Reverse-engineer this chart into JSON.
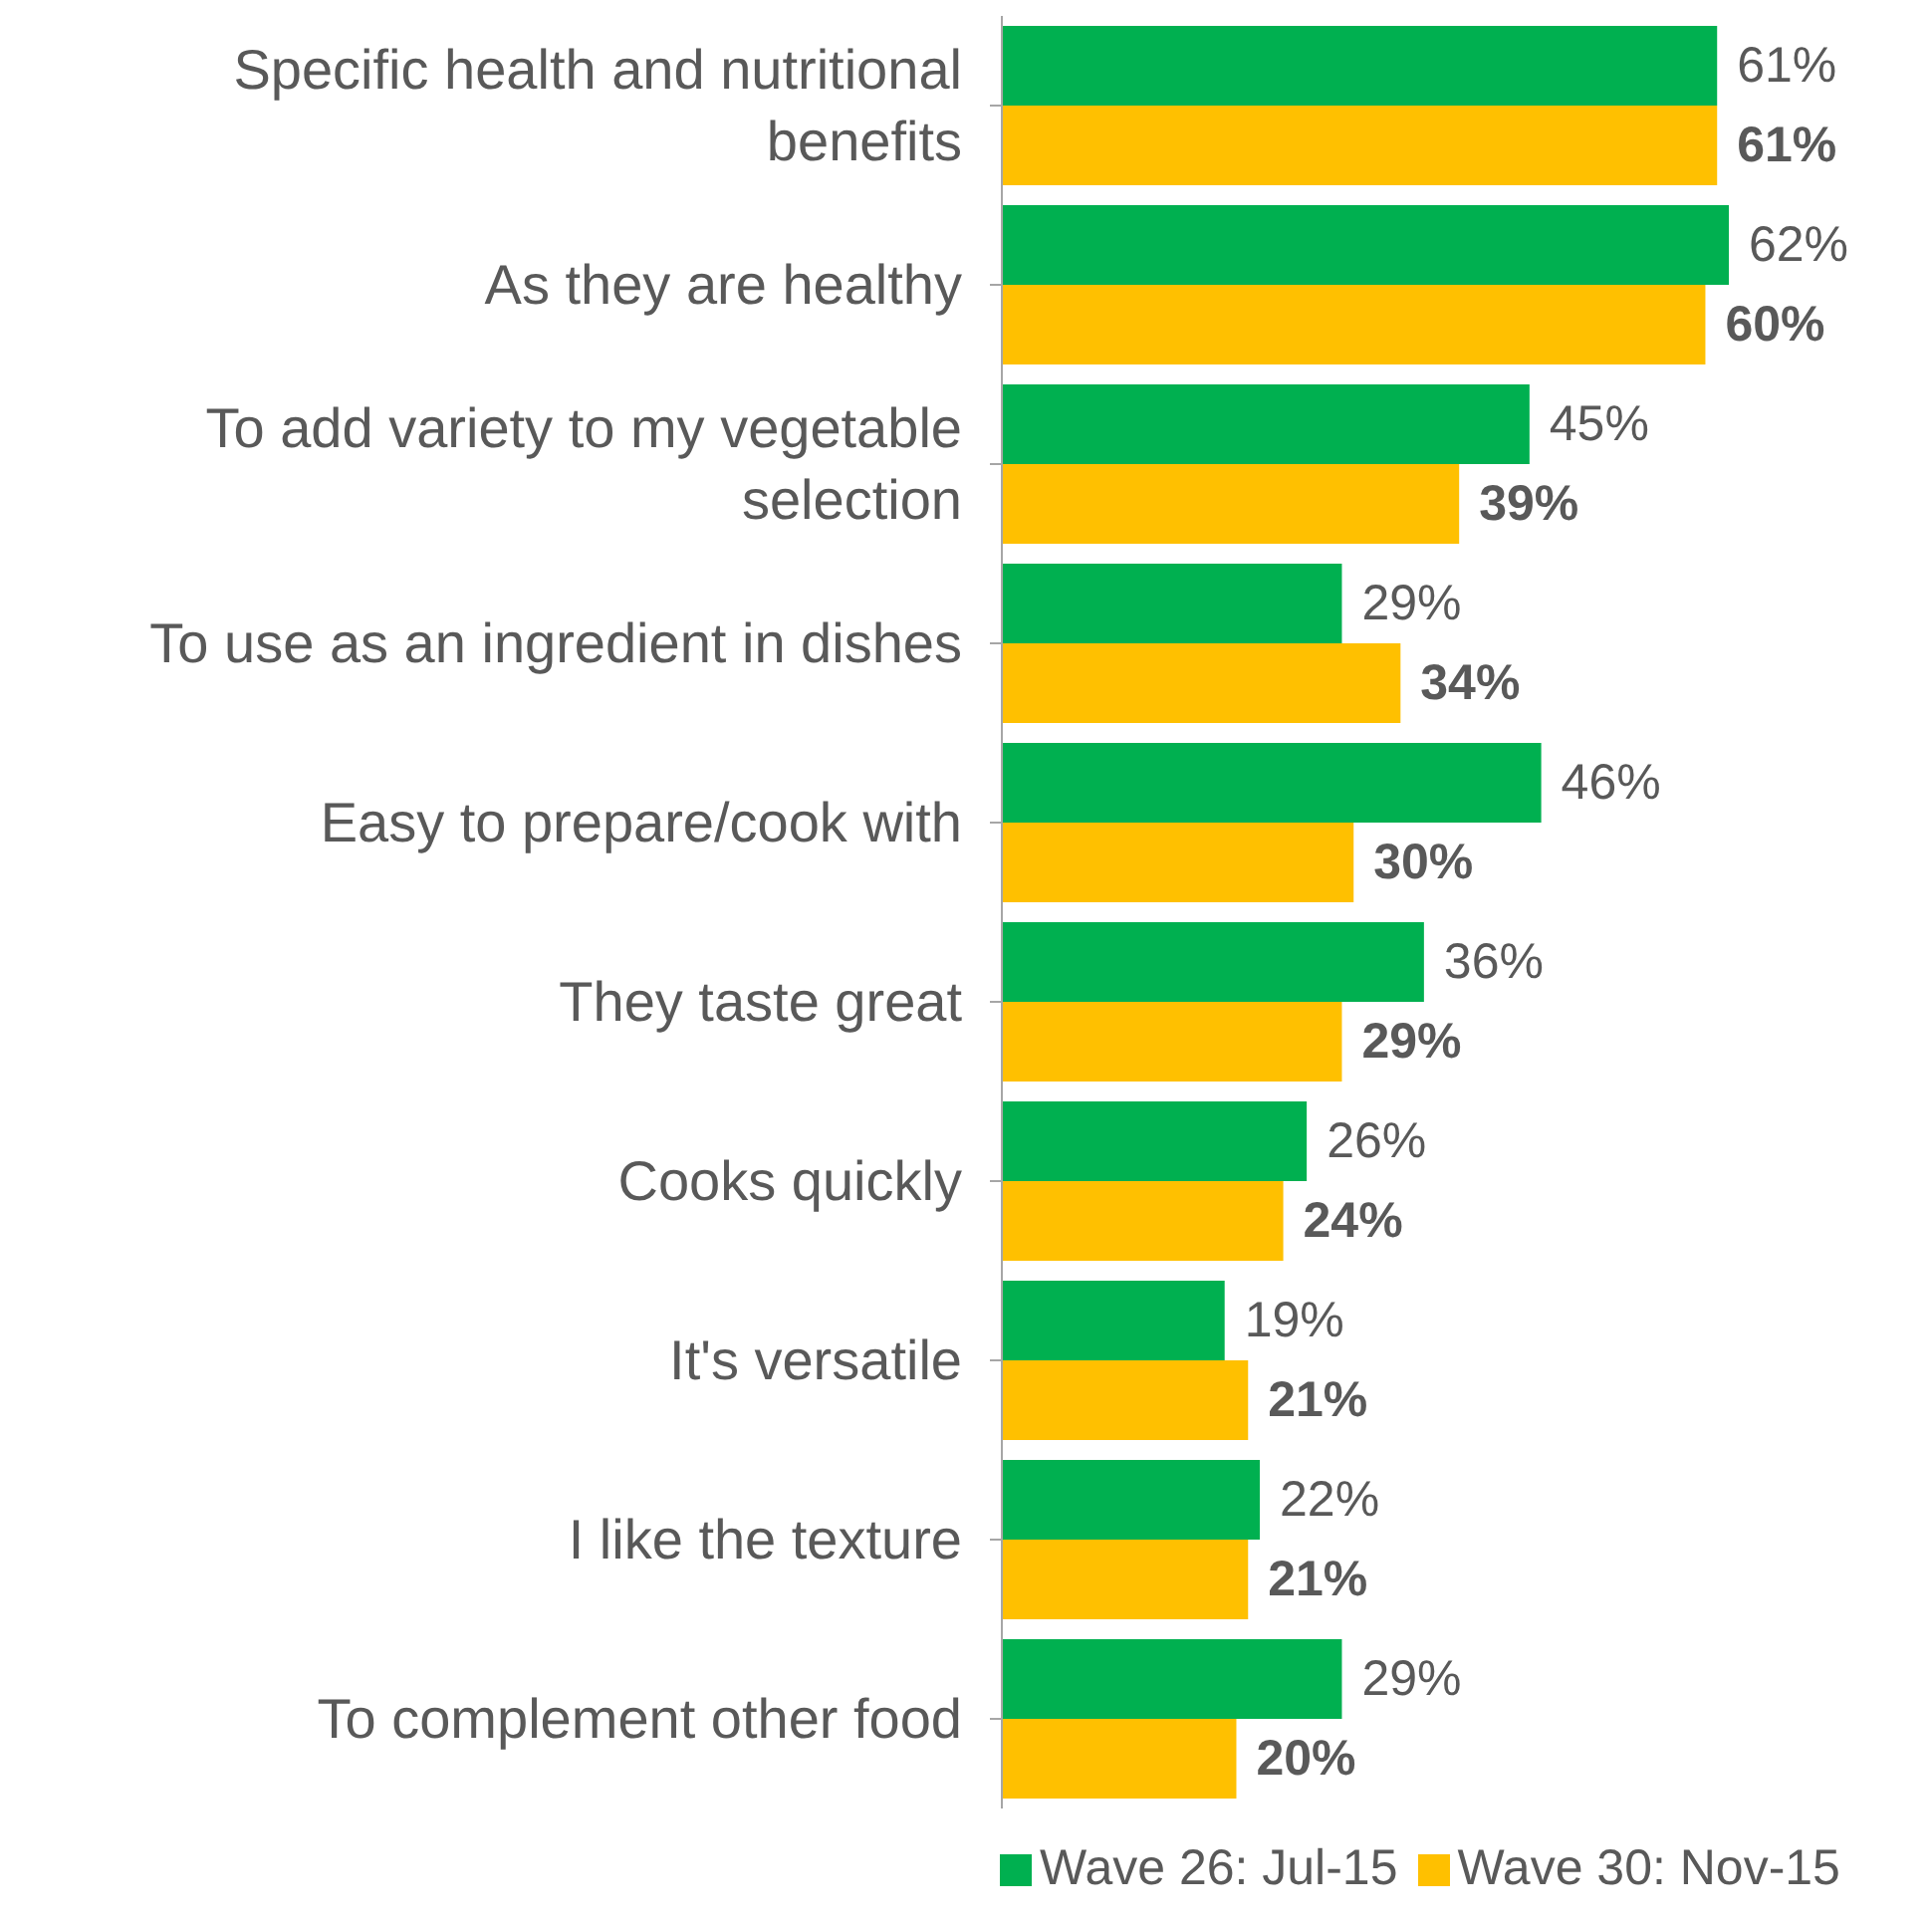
{
  "chart_data": {
    "type": "bar",
    "orientation": "horizontal",
    "categories": [
      "Specific health and nutritional benefits",
      "As they are healthy",
      "To add variety to my vegetable selection",
      "To use as an ingredient in dishes",
      "Easy to prepare/cook with",
      "They taste great",
      "Cooks quickly",
      "It's versatile",
      "I like the texture",
      "To complement other food"
    ],
    "series": [
      {
        "name": "Wave 26: Jul-15",
        "color": "#00b050",
        "values": [
          61,
          62,
          45,
          29,
          46,
          36,
          26,
          19,
          22,
          29
        ],
        "value_labels": [
          "61%",
          "62%",
          "45%",
          "29%",
          "46%",
          "36%",
          "26%",
          "19%",
          "22%",
          "29%"
        ]
      },
      {
        "name": "Wave 30: Nov-15",
        "color": "#ffc000",
        "values": [
          61,
          60,
          39,
          34,
          30,
          29,
          24,
          21,
          21,
          20
        ],
        "value_labels": [
          "61%",
          "60%",
          "39%",
          "34%",
          "30%",
          "29%",
          "24%",
          "21%",
          "21%",
          "20%"
        ]
      }
    ],
    "legend": "bottom",
    "tick_labels": "y"
  }
}
